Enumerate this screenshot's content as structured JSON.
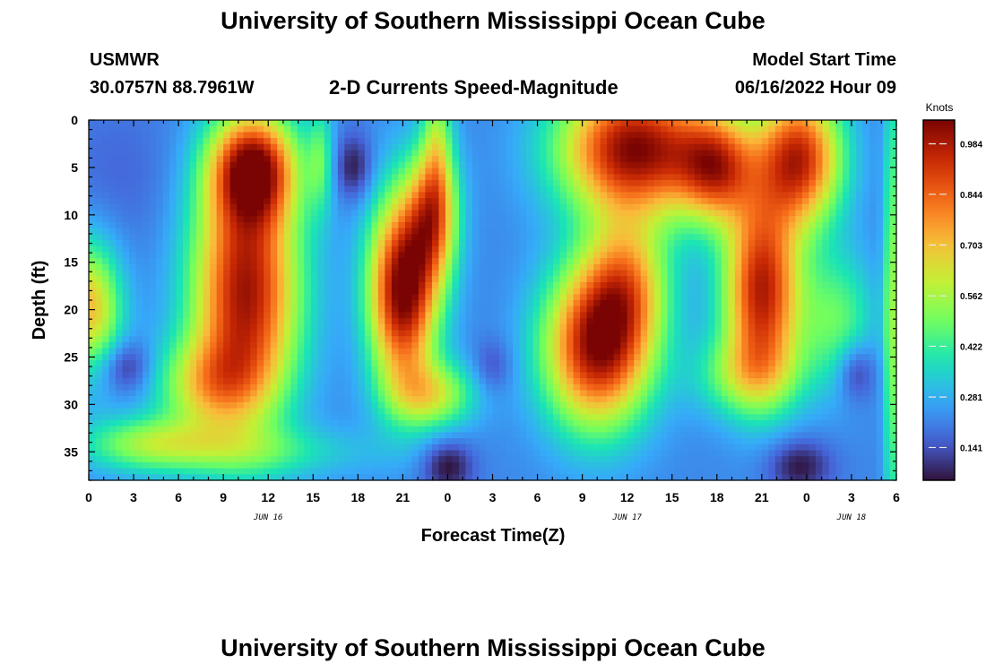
{
  "header": {
    "title_top": "University of Southern Mississippi Ocean Cube",
    "station": "USMWR",
    "coords": "30.0757N  88.7961W",
    "subtitle": "2-D Currents Speed-Magnitude",
    "model_start_label": "Model Start Time",
    "model_start_value": "06/16/2022 Hour 09",
    "title_bottom": "University of Southern Mississippi Ocean Cube"
  },
  "chart_data": {
    "type": "heatmap",
    "xlabel": "Forecast Time(Z)",
    "ylabel": "Depth (ft)",
    "colorbar_title": "Knots",
    "x_range_hours": [
      0,
      54
    ],
    "y_range_ft": [
      0,
      38
    ],
    "x_tick_labels": [
      "0",
      "3",
      "6",
      "9",
      "12",
      "15",
      "18",
      "21",
      "0",
      "3",
      "6",
      "9",
      "12",
      "15",
      "18",
      "21",
      "0",
      "3",
      "6"
    ],
    "date_labels": [
      {
        "text": "JUN 16",
        "hour": 12
      },
      {
        "text": "JUN 17",
        "hour": 36
      },
      {
        "text": "JUN 18",
        "hour": 51
      }
    ],
    "y_ticks": [
      0,
      5,
      10,
      15,
      20,
      25,
      30,
      35
    ],
    "colorbar_ticks": [
      "0.984",
      "0.844",
      "0.703",
      "0.562",
      "0.422",
      "0.281",
      "0.141"
    ],
    "colorbar_tick_values": [
      0.984,
      0.844,
      0.703,
      0.562,
      0.422,
      0.281,
      0.141
    ],
    "value_range": [
      0.05,
      1.05
    ],
    "colormap": [
      "#30123b",
      "#4662d7",
      "#36aaf9",
      "#1ae4b6",
      "#72fe5e",
      "#c7ef34",
      "#faba39",
      "#f66b19",
      "#ca2a04",
      "#7a0403"
    ],
    "background_speed": 0.22,
    "features": [
      {
        "hour": 10.5,
        "depth": 18,
        "sx": 2.5,
        "sy": 9,
        "amp": 0.78
      },
      {
        "hour": 11,
        "depth": 5,
        "sx": 2,
        "sy": 4,
        "amp": 0.7
      },
      {
        "hour": 8,
        "depth": 28,
        "sx": 2.5,
        "sy": 3.5,
        "amp": 0.35
      },
      {
        "hour": 0,
        "depth": 20,
        "sx": 1.5,
        "sy": 5,
        "amp": 0.5
      },
      {
        "hour": 4,
        "depth": 34,
        "sx": 3,
        "sy": 2,
        "amp": 0.25
      },
      {
        "hour": 21,
        "depth": 18,
        "sx": 1.6,
        "sy": 7,
        "amp": 0.85
      },
      {
        "hour": 23,
        "depth": 10,
        "sx": 1.2,
        "sy": 5,
        "amp": 0.5
      },
      {
        "hour": 23,
        "depth": 29,
        "sx": 2,
        "sy": 2.5,
        "amp": 0.35
      },
      {
        "hour": 23.3,
        "depth": 2,
        "sx": 0.7,
        "sy": 6,
        "amp": 0.25
      },
      {
        "hour": 15.5,
        "depth": 4,
        "sx": 0.6,
        "sy": 4,
        "amp": 0.2
      },
      {
        "hour": 10,
        "depth": 35,
        "sx": 6,
        "sy": 2,
        "amp": 0.18
      },
      {
        "hour": 34,
        "depth": 24,
        "sx": 2.5,
        "sy": 6,
        "amp": 0.78
      },
      {
        "hour": 36,
        "depth": 17,
        "sx": 2,
        "sy": 5,
        "amp": 0.4
      },
      {
        "hour": 36.5,
        "depth": 3,
        "sx": 3.5,
        "sy": 5,
        "amp": 0.82
      },
      {
        "hour": 42,
        "depth": 5,
        "sx": 1.8,
        "sy": 4,
        "amp": 0.55
      },
      {
        "hour": 45,
        "depth": 18,
        "sx": 1.8,
        "sy": 7,
        "amp": 0.75
      },
      {
        "hour": 47.5,
        "depth": 4,
        "sx": 2,
        "sy": 5,
        "amp": 0.72
      },
      {
        "hour": 50,
        "depth": 21,
        "sx": 1.8,
        "sy": 5,
        "amp": 0.25
      },
      {
        "hour": 44,
        "depth": 27,
        "sx": 2.5,
        "sy": 3,
        "amp": 0.25
      },
      {
        "hour": 0,
        "depth": 25,
        "sx": 0.8,
        "sy": 3,
        "amp": -0.05
      },
      {
        "hour": 2.4,
        "depth": 26,
        "sx": 1.2,
        "sy": 2,
        "amp": -0.17
      },
      {
        "hour": 17.7,
        "depth": 5,
        "sx": 0.9,
        "sy": 2.5,
        "amp": -0.17
      },
      {
        "hour": 24,
        "depth": 36.5,
        "sx": 1.2,
        "sy": 2,
        "amp": -0.18
      },
      {
        "hour": 27,
        "depth": 26,
        "sx": 0.9,
        "sy": 2,
        "amp": -0.1
      },
      {
        "hour": 47.5,
        "depth": 36.5,
        "sx": 1.5,
        "sy": 2,
        "amp": -0.17
      },
      {
        "hour": 51.3,
        "depth": 26.5,
        "sx": 0.9,
        "sy": 2.2,
        "amp": -0.17
      },
      {
        "hour": 2,
        "depth": 6,
        "sx": 3,
        "sy": 6,
        "amp": -0.05
      },
      {
        "hour": 53.7,
        "depth": 20,
        "sx": 0.4,
        "sy": 18,
        "amp": 0.3
      }
    ]
  }
}
